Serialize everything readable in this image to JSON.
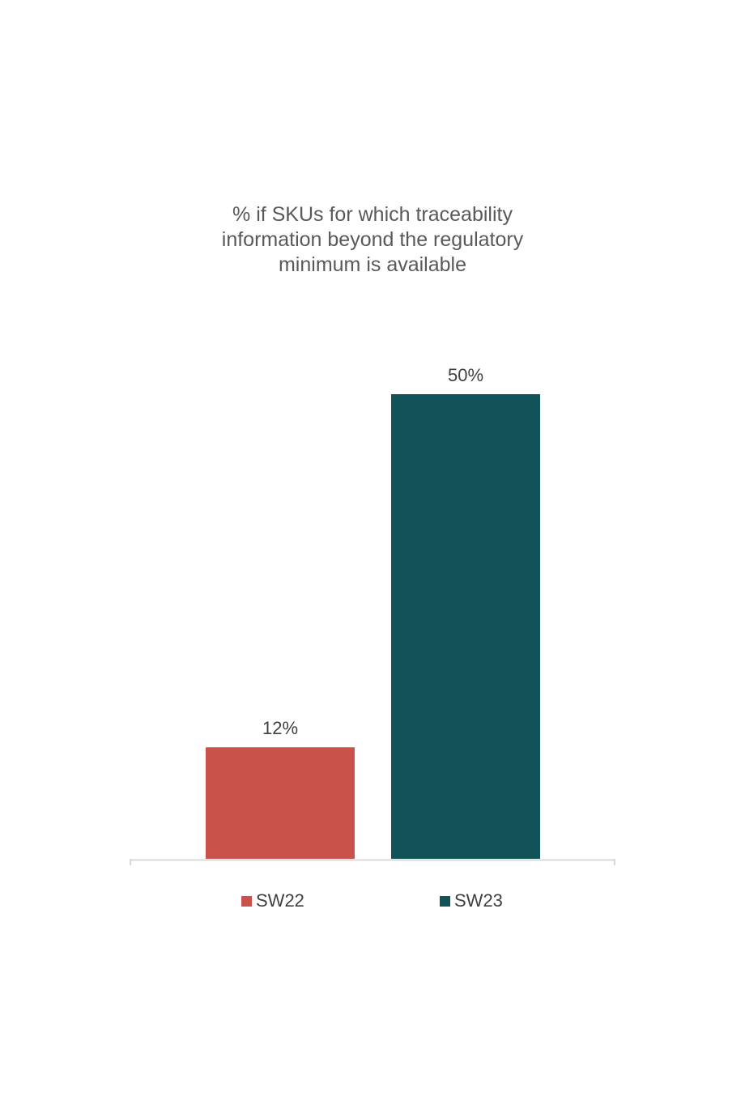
{
  "chart_data": {
    "type": "bar",
    "title_lines": [
      "% if SKUs for which traceability",
      "information beyond the regulatory",
      "minimum is available"
    ],
    "categories": [
      "SW22",
      "SW23"
    ],
    "values": [
      12,
      50
    ],
    "value_labels": [
      "12%",
      "50%"
    ],
    "colors": [
      "#c9534b",
      "#115359"
    ],
    "ylim": [
      0,
      50
    ],
    "grid": false,
    "legend": {
      "position": "bottom",
      "entries": [
        {
          "label": "SW22",
          "color": "#c9534b"
        },
        {
          "label": "SW23",
          "color": "#115359"
        }
      ]
    }
  }
}
